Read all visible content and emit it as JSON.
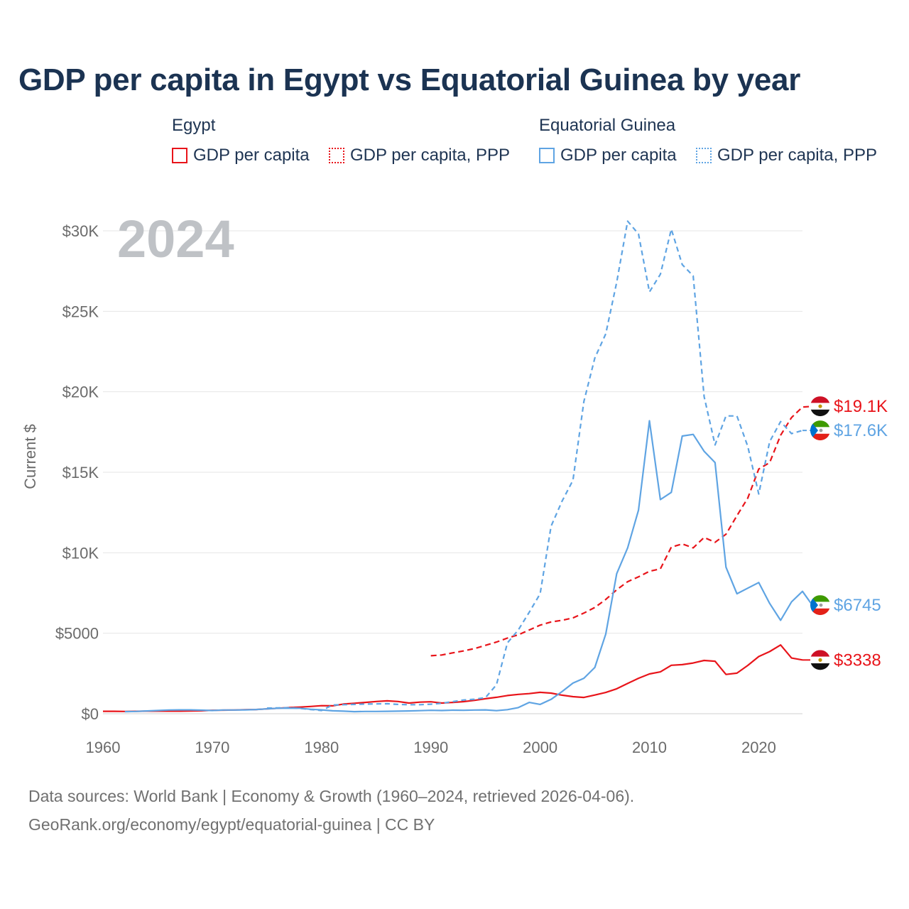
{
  "chart_data": {
    "type": "line",
    "title": "GDP per capita in Egypt vs Equatorial Guinea by year",
    "ylabel": "Current $",
    "ylim": [
      0,
      31000
    ],
    "xlim": [
      1960,
      2024
    ],
    "year_label": "2024",
    "x_ticks": [
      {
        "value": 1960,
        "label": "1960"
      },
      {
        "value": 1970,
        "label": "1970"
      },
      {
        "value": 1980,
        "label": "1980"
      },
      {
        "value": 1990,
        "label": "1990"
      },
      {
        "value": 2000,
        "label": "2000"
      },
      {
        "value": 2010,
        "label": "2010"
      },
      {
        "value": 2020,
        "label": "2020"
      }
    ],
    "y_ticks": [
      {
        "value": 0,
        "label": "$0"
      },
      {
        "value": 5000,
        "label": "$5000"
      },
      {
        "value": 10000,
        "label": "$10K"
      },
      {
        "value": 15000,
        "label": "$15K"
      },
      {
        "value": 20000,
        "label": "$20K"
      },
      {
        "value": 25000,
        "label": "$25K"
      },
      {
        "value": 30000,
        "label": "$30K"
      }
    ],
    "legend": {
      "groups": [
        {
          "country": "Egypt",
          "items": [
            "GDP per capita",
            "GDP per capita, PPP"
          ]
        },
        {
          "country": "Equatorial Guinea",
          "items": [
            "GDP per capita",
            "GDP per capita, PPP"
          ]
        }
      ]
    },
    "series": [
      {
        "name": "Egypt GDP per capita",
        "color": "#e8141a",
        "dash": "solid",
        "start_year": 1960,
        "end_label": "$3338",
        "flag": "egypt",
        "values": [
          150,
          150,
          140,
          150,
          160,
          160,
          160,
          160,
          170,
          180,
          210,
          220,
          230,
          250,
          260,
          300,
          340,
          380,
          410,
          450,
          500,
          490,
          600,
          650,
          700,
          760,
          800,
          760,
          660,
          720,
          740,
          660,
          700,
          750,
          830,
          930,
          1020,
          1130,
          1200,
          1250,
          1330,
          1280,
          1150,
          1060,
          1010,
          1160,
          1320,
          1550,
          1880,
          2200,
          2470,
          2600,
          3010,
          3050,
          3150,
          3310,
          3260,
          2440,
          2520,
          3000,
          3550,
          3860,
          4270,
          3460,
          3338
        ]
      },
      {
        "name": "Egypt GDP per capita, PPP",
        "color": "#e8141a",
        "dash": "dashed",
        "start_year": 1990,
        "end_label": "$19.1K",
        "flag": "egypt",
        "values": [
          3600,
          3650,
          3780,
          3900,
          4050,
          4250,
          4450,
          4700,
          4900,
          5200,
          5500,
          5700,
          5800,
          5950,
          6250,
          6600,
          7100,
          7700,
          8200,
          8500,
          8850,
          9000,
          10350,
          10550,
          10300,
          10950,
          10650,
          11150,
          12300,
          13400,
          15200,
          15600,
          17300,
          18400,
          19050,
          19100
        ]
      },
      {
        "name": "Equatorial Guinea GDP per capita",
        "color": "#5fa4e3",
        "dash": "solid",
        "start_year": 1962,
        "end_label": "$6745",
        "flag": "equatorial-guinea",
        "values": [
          130,
          140,
          170,
          200,
          230,
          240,
          240,
          220,
          200,
          230,
          230,
          240,
          260,
          300,
          340,
          350,
          340,
          280,
          240,
          180,
          160,
          130,
          140,
          140,
          150,
          160,
          170,
          190,
          210,
          200,
          220,
          210,
          230,
          240,
          190,
          250,
          380,
          700,
          580,
          890,
          1370,
          1900,
          2200,
          2870,
          4950,
          8700,
          10300,
          12650,
          18200,
          13300,
          13750,
          17250,
          17350,
          16300,
          15600,
          9100,
          7450,
          7800,
          8150,
          6850,
          5800,
          6950,
          7600,
          6650,
          6745
        ]
      },
      {
        "name": "Equatorial Guinea GDP per capita, PPP",
        "color": "#5fa4e3",
        "dash": "dotted-dashed",
        "start_year": 1975,
        "end_label": "$17.6K",
        "flag": "equatorial-guinea",
        "values": [
          350,
          360,
          370,
          330,
          260,
          200,
          540,
          560,
          580,
          600,
          610,
          620,
          580,
          560,
          560,
          590,
          650,
          750,
          850,
          900,
          1000,
          1800,
          4400,
          5200,
          6300,
          7450,
          11650,
          13200,
          14500,
          19400,
          22100,
          23600,
          26800,
          30600,
          29800,
          26200,
          27300,
          30100,
          27900,
          27200,
          19700,
          16700,
          18500,
          18500,
          16600,
          13650,
          16900,
          18150,
          17400,
          17600
        ]
      }
    ]
  },
  "footer": {
    "line1": "Data sources: World Bank | Economy & Growth (1960–2024, retrieved 2026-04-06).",
    "line2": "GeoRank.org/economy/egypt/equatorial-guinea | CC BY"
  }
}
